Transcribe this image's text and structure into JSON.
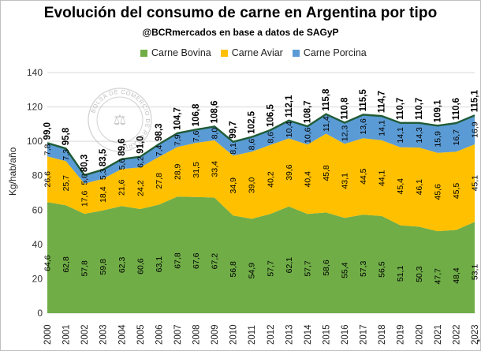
{
  "title": "Evolución del consumo de carne en Argentina por tipo",
  "subtitle": "@BCRmercados en base a datos de SAGyP",
  "watermark_text": "BOLSA DE COMERCIO DE ROSARIO",
  "chart_data": {
    "type": "area",
    "stacked": true,
    "title": "Evolución del consumo de carne en Argentina por tipo",
    "ylabel": "Kg/hab/año",
    "xlabel": "",
    "ylim": [
      0,
      140
    ],
    "yticks": [
      "0",
      "20",
      "40",
      "60",
      "80",
      "100",
      "120",
      "140"
    ],
    "categories": [
      "2000",
      "2001",
      "2002",
      "2003",
      "2004",
      "2005",
      "2006",
      "2007",
      "2008",
      "2009",
      "2010",
      "2011",
      "2012",
      "2013",
      "2014",
      "2015",
      "2016",
      "2017",
      "2018",
      "2019",
      "2020",
      "2021",
      "2022",
      "2023"
    ],
    "category_note": "*",
    "legend_position": "top",
    "series": [
      {
        "name": "Carne Bovina",
        "color": "#70ad47",
        "values": [
          64.6,
          62.8,
          57.8,
          59.8,
          62.3,
          60.6,
          63.1,
          67.8,
          67.6,
          67.2,
          56.8,
          54.9,
          57.7,
          62.1,
          57.7,
          58.6,
          55.4,
          57.3,
          56.5,
          51.1,
          50.3,
          47.7,
          48.4,
          53.1
        ],
        "labels": [
          "64,6",
          "62,8",
          "57,8",
          "59,8",
          "62,3",
          "60,6",
          "63,1",
          "67,8",
          "67,6",
          "67,2",
          "56,8",
          "54,9",
          "57,7",
          "62,1",
          "57,7",
          "58,6",
          "55,4",
          "57,3",
          "56,5",
          "51,1",
          "50,3",
          "47,7",
          "48,4",
          "53,1"
        ]
      },
      {
        "name": "Carne Aviar",
        "color": "#ffc000",
        "values": [
          26.6,
          25.7,
          17.6,
          18.4,
          21.6,
          24.2,
          27.8,
          28.9,
          31.5,
          33.4,
          34.9,
          39.0,
          40.2,
          39.6,
          40.4,
          45.8,
          43.1,
          44.5,
          44.1,
          45.4,
          46.1,
          45.6,
          45.5,
          45.1
        ],
        "labels": [
          "26,6",
          "25,7",
          "17,6",
          "18,4",
          "21,6",
          "24,2",
          "27,8",
          "28,9",
          "31,5",
          "33,4",
          "34,9",
          "39,0",
          "40,2",
          "39,6",
          "40,4",
          "45,8",
          "43,1",
          "44,5",
          "44,1",
          "45,4",
          "46,1",
          "45,6",
          "45,5",
          "45,1"
        ]
      },
      {
        "name": "Carne Porcina",
        "color": "#5b9bd5",
        "values": [
          7.8,
          7.3,
          5.0,
          5.3,
          5.6,
          6.2,
          7.4,
          7.9,
          7.6,
          8.0,
          8.1,
          8.6,
          8.6,
          10.4,
          10.6,
          11.4,
          12.3,
          13.6,
          14.1,
          14.1,
          14.3,
          15.9,
          16.7,
          16.9
        ],
        "labels": [
          "7,8",
          "7,3",
          "5,0",
          "5,3",
          "5,6",
          "6,2",
          "7,4",
          "7,9",
          "7,6",
          "8,0",
          "8,1",
          "8,6",
          "8,6",
          "10,4",
          "10,6",
          "11,4",
          "12,3",
          "13,6",
          "14,1",
          "14,1",
          "14,3",
          "15,9",
          "16,7",
          "16,9"
        ]
      }
    ],
    "totals": [
      99.0,
      95.8,
      80.3,
      83.5,
      89.6,
      91.0,
      98.3,
      104.7,
      106.8,
      108.6,
      99.7,
      102.5,
      106.5,
      112.1,
      108.7,
      115.8,
      110.8,
      115.5,
      114.7,
      110.7,
      110.7,
      109.1,
      110.6,
      115.1
    ],
    "total_labels": [
      "99,0",
      "95,8",
      "80,3",
      "83,5",
      "89,6",
      "91,0",
      "98,3",
      "104,7",
      "106,8",
      "108,6",
      "99,7",
      "102,5",
      "106,5",
      "112,1",
      "108,7",
      "115,8",
      "110,8",
      "115,5",
      "114,7",
      "110,7",
      "110,7",
      "109,1",
      "110,6",
      "115,1"
    ],
    "total_line_color": "#1f5c38",
    "grid": true
  }
}
